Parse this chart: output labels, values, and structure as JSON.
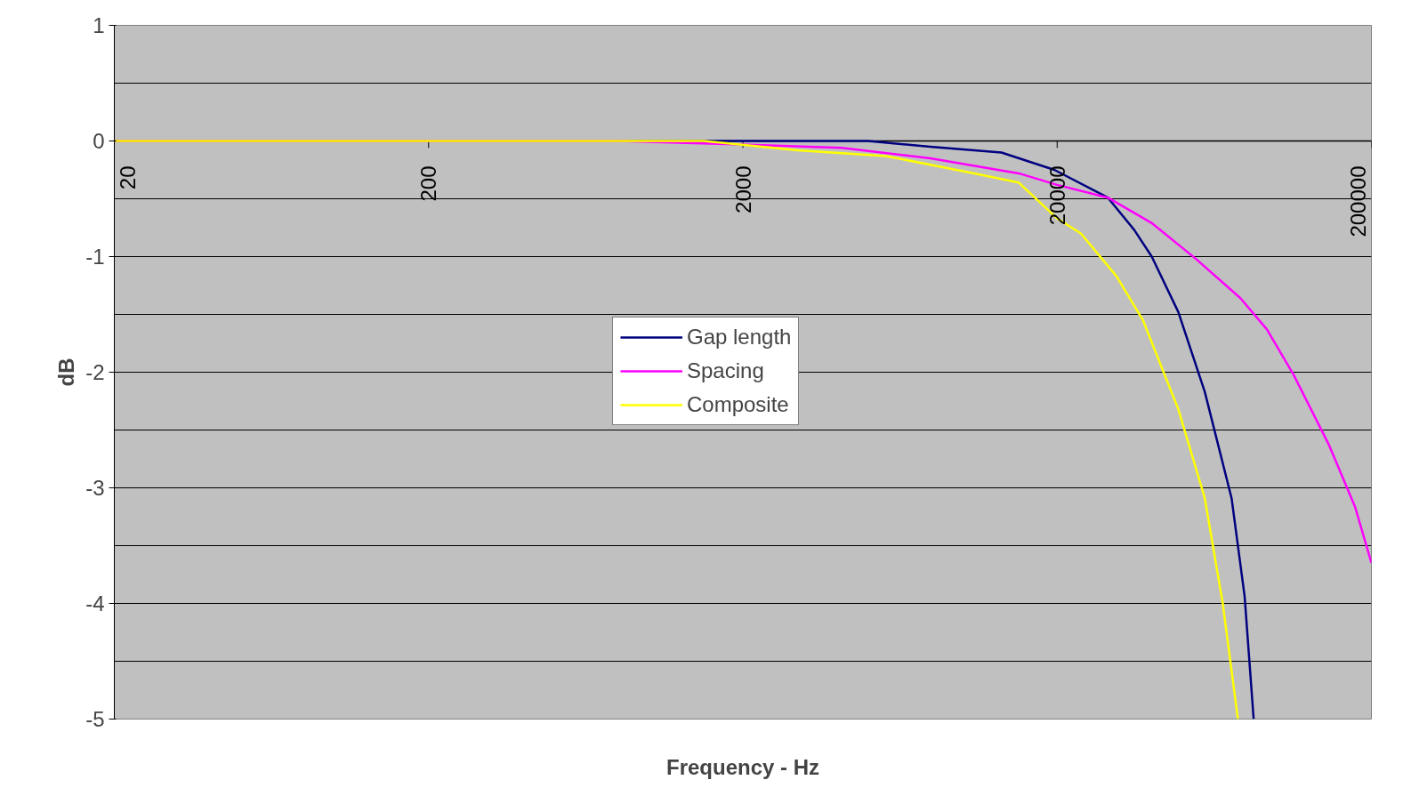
{
  "chart_data": {
    "type": "line",
    "xlabel": "Frequency - Hz",
    "ylabel": "dB",
    "log": "x",
    "xlim": [
      20,
      200000
    ],
    "xticks": [
      20,
      200,
      2000,
      20000,
      200000
    ],
    "ylim": [
      -5,
      1
    ],
    "yticks": [
      -5,
      {
        "value": -4.5,
        "label": null
      },
      -4,
      {
        "value": -3.5,
        "label": null
      },
      -3,
      {
        "value": -2.5,
        "label": null
      },
      -2,
      {
        "value": -1.5,
        "label": null
      },
      -1,
      {
        "value": -0.5,
        "label": null
      },
      0,
      {
        "value": 0.5,
        "label": null
      },
      1
    ],
    "grid": "y",
    "legend": "center",
    "line_style": "solid",
    "marker": "none",
    "series": [
      {
        "name": "Gap length",
        "color": "#000080",
        "x": [
          20,
          1000,
          5000,
          7900,
          13300,
          19600,
          29000,
          35200,
          40000,
          48600,
          59000,
          71800,
          79000,
          84400
        ],
        "values": [
          0,
          0,
          0,
          -0.05,
          -0.1,
          -0.25,
          -0.49,
          -0.77,
          -1.0,
          -1.48,
          -2.17,
          -3.09,
          -3.94,
          -5
        ]
      },
      {
        "name": "Spacing",
        "color": "#ff00ff",
        "x": [
          20,
          800,
          2000,
          4130,
          7900,
          15100,
          20000,
          29000,
          40000,
          55300,
          76600,
          93000,
          113000,
          146600,
          177700,
          200000
        ],
        "values": [
          0,
          0,
          -0.03,
          -0.06,
          -0.15,
          -0.28,
          -0.38,
          -0.49,
          -0.71,
          -1.02,
          -1.36,
          -1.63,
          -2.02,
          -2.63,
          -3.17,
          -3.65
        ]
      },
      {
        "name": "Composite",
        "color": "#ffff00",
        "x": [
          20,
          1500,
          3000,
          5700,
          10900,
          15100,
          20000,
          23800,
          30900,
          37500,
          48600,
          59000,
          67300,
          75200
        ],
        "values": [
          0,
          0,
          -0.08,
          -0.13,
          -0.28,
          -0.36,
          -0.67,
          -0.8,
          -1.17,
          -1.55,
          -2.32,
          -3.09,
          -4.0,
          -5
        ]
      }
    ]
  }
}
